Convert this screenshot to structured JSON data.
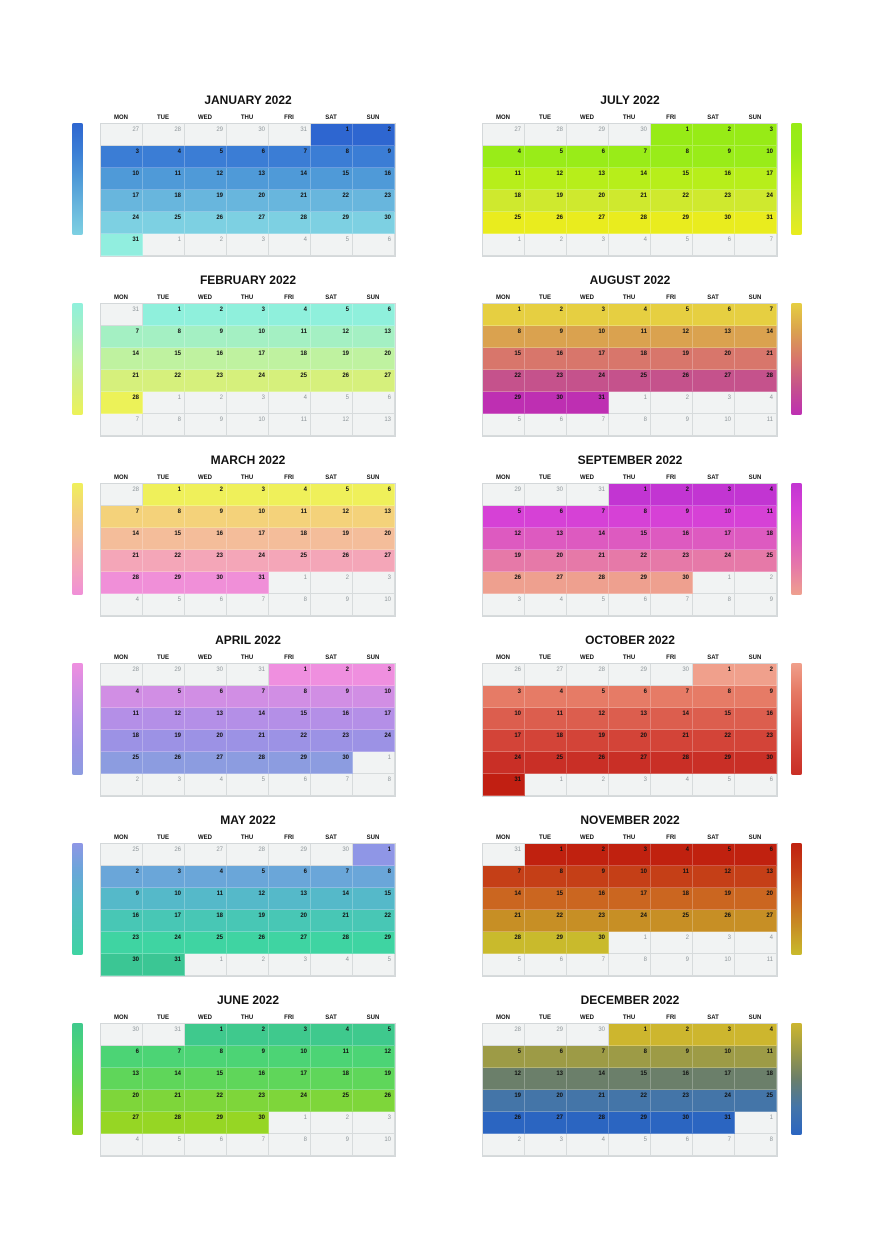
{
  "weekdays": [
    "MON",
    "TUE",
    "WED",
    "THU",
    "FRI",
    "SAT",
    "SUN"
  ],
  "months": [
    {
      "title": "JANUARY 2022",
      "first_weekday": 5,
      "days": 31,
      "prev_days": 31,
      "col": "left",
      "colors": [
        "#2e66d0",
        "#3b7dd5",
        "#4f9ad8",
        "#68b6dd",
        "#7dd0e2",
        "#91eedf"
      ]
    },
    {
      "title": "FEBRUARY 2022",
      "first_weekday": 1,
      "days": 28,
      "prev_days": 31,
      "col": "left",
      "colors": [
        "#8ff0dc",
        "#a4f0c3",
        "#bff2a0",
        "#d6f07c",
        "#ecf258",
        "#ecf258"
      ]
    },
    {
      "title": "MARCH 2022",
      "first_weekday": 1,
      "days": 31,
      "prev_days": 28,
      "col": "left",
      "colors": [
        "#eff05a",
        "#f4d27a",
        "#f4bd9a",
        "#f4a6b8",
        "#f08fd8",
        "#f08fd8"
      ]
    },
    {
      "title": "APRIL 2022",
      "first_weekday": 4,
      "days": 30,
      "prev_days": 31,
      "col": "left",
      "colors": [
        "#ef8fdf",
        "#d18ee4",
        "#b48fe7",
        "#9c92e5",
        "#8c9ce0",
        "#8c9ce0"
      ]
    },
    {
      "title": "MAY 2022",
      "first_weekday": 6,
      "days": 31,
      "prev_days": 30,
      "col": "left",
      "colors": [
        "#8f96e6",
        "#6aa6d9",
        "#55b9c9",
        "#48c7b5",
        "#3fd4a2",
        "#3bc694"
      ]
    },
    {
      "title": "JUNE 2022",
      "first_weekday": 2,
      "days": 30,
      "prev_days": 31,
      "col": "left",
      "colors": [
        "#3fc98d",
        "#4cd475",
        "#5fd65a",
        "#7ed63a",
        "#96d624",
        "#96d624"
      ]
    },
    {
      "title": "JULY 2022",
      "first_weekday": 4,
      "days": 31,
      "prev_days": 30,
      "col": "right",
      "colors": [
        "#97eb16",
        "#99ec18",
        "#b7ee1a",
        "#cfe92e",
        "#e9ec1e",
        "#e9ec1e"
      ]
    },
    {
      "title": "AUGUST 2022",
      "first_weekday": 0,
      "days": 31,
      "prev_days": 31,
      "col": "right",
      "colors": [
        "#e6cf41",
        "#daa24f",
        "#d8766b",
        "#c5528c",
        "#be2fb2",
        "#be2fb2"
      ]
    },
    {
      "title": "SEPTEMBER 2022",
      "first_weekday": 3,
      "days": 30,
      "prev_days": 31,
      "col": "right",
      "colors": [
        "#c235d2",
        "#d641d6",
        "#dd5ac0",
        "#e679a8",
        "#eea08f",
        "#eea08f"
      ]
    },
    {
      "title": "OCTOBER 2022",
      "first_weekday": 5,
      "days": 31,
      "prev_days": 30,
      "col": "right",
      "colors": [
        "#f0a08c",
        "#e67b66",
        "#dc5e4e",
        "#d34438",
        "#c92f26",
        "#c11f12"
      ]
    },
    {
      "title": "NOVEMBER 2022",
      "first_weekday": 1,
      "days": 30,
      "prev_days": 31,
      "col": "right",
      "colors": [
        "#c0210f",
        "#c53f17",
        "#cb6620",
        "#c78f25",
        "#c9ba2c",
        "#c9ba2c"
      ]
    },
    {
      "title": "DECEMBER 2022",
      "first_weekday": 3,
      "days": 31,
      "prev_days": 30,
      "col": "right",
      "colors": [
        "#cdb62e",
        "#9d9b46",
        "#6b7f6a",
        "#4475a8",
        "#2b65c1",
        "#2b65c1"
      ]
    }
  ]
}
